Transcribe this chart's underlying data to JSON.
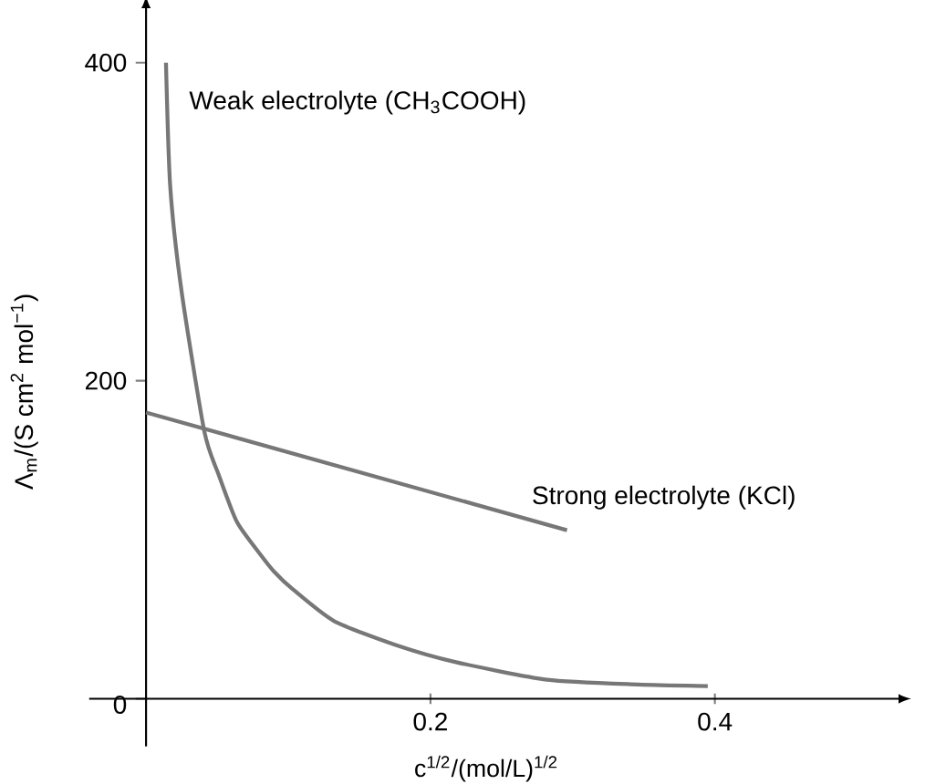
{
  "chart_data": {
    "type": "line",
    "xlabel": "c$^{1/2}$/(mol/L)$^{1/2}$",
    "ylabel": "Λ$_{m}$/(S cm$^{2}$ mol$^{−1}$)",
    "xlim": [
      -0.04,
      0.53
    ],
    "ylim": [
      -30,
      435
    ],
    "xticks": [
      0.2,
      0.4
    ],
    "yticks": [
      0,
      200,
      400
    ],
    "grid": false,
    "legend": false,
    "marker": "none",
    "line_style": "solid",
    "series": [
      {
        "name": "Weak electrolyte (CH$_{3}$COOH)",
        "color": "#777777",
        "x": [
          0.014,
          0.017,
          0.025,
          0.041,
          0.051,
          0.064,
          0.081,
          0.09,
          0.103,
          0.132,
          0.175,
          0.218,
          0.282,
          0.346,
          0.395
        ],
        "values": [
          400,
          322,
          256,
          168,
          141,
          111,
          90,
          80,
          69,
          49,
          34,
          23,
          12,
          9,
          8
        ]
      },
      {
        "name": "Strong electrolyte (KCl)",
        "color": "#777777",
        "x": [
          0,
          0.296
        ],
        "values": [
          180,
          106
        ]
      }
    ]
  }
}
